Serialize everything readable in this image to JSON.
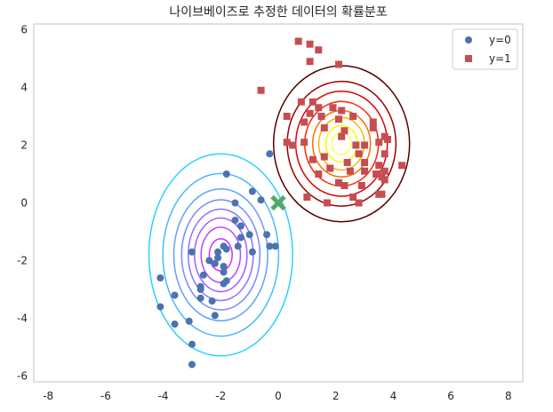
{
  "chart_data": {
    "type": "scatter",
    "title": "나이브베이즈로 추정한 데이터의 확률분포",
    "xlim": [
      -8.5,
      8.5
    ],
    "ylim": [
      -6.2,
      6.2
    ],
    "xticks": [
      -8,
      -6,
      -4,
      -2,
      0,
      2,
      4,
      6,
      8
    ],
    "yticks": [
      6,
      4,
      2,
      0,
      -2,
      -4,
      -6
    ],
    "grid": false,
    "legend_position": "top-right",
    "series": [
      {
        "name": "y=0",
        "marker": "circle",
        "color": "#4c72b0",
        "points": [
          [
            -1.8,
            1.0
          ],
          [
            -0.3,
            1.7
          ],
          [
            -1.5,
            0.0
          ],
          [
            -0.9,
            0.4
          ],
          [
            -0.6,
            0.1
          ],
          [
            -1.5,
            -0.6
          ],
          [
            -1.3,
            -0.8
          ],
          [
            -1.0,
            -1.1
          ],
          [
            -0.4,
            -1.1
          ],
          [
            -0.3,
            -1.5
          ],
          [
            -0.1,
            -1.5
          ],
          [
            -1.3,
            -1.2
          ],
          [
            -1.4,
            -1.5
          ],
          [
            -0.9,
            -1.7
          ],
          [
            -1.9,
            -1.5
          ],
          [
            -1.8,
            -1.6
          ],
          [
            -2.1,
            -1.7
          ],
          [
            -2.1,
            -1.9
          ],
          [
            -2.2,
            -2.1
          ],
          [
            -2.4,
            -2.0
          ],
          [
            -3.0,
            -1.7
          ],
          [
            -1.9,
            -2.2
          ],
          [
            -1.9,
            -2.4
          ],
          [
            -2.6,
            -2.5
          ],
          [
            -2.7,
            -2.9
          ],
          [
            -1.8,
            -2.7
          ],
          [
            -1.9,
            -2.8
          ],
          [
            -2.7,
            -3.0
          ],
          [
            -2.7,
            -3.3
          ],
          [
            -2.3,
            -3.4
          ],
          [
            -2.2,
            -3.9
          ],
          [
            -3.1,
            -4.1
          ],
          [
            -3.6,
            -3.2
          ],
          [
            -4.1,
            -2.6
          ],
          [
            -4.1,
            -3.6
          ],
          [
            -3.6,
            -4.2
          ],
          [
            -3.0,
            -4.9
          ],
          [
            -3.0,
            -5.6
          ]
        ]
      },
      {
        "name": "y=1",
        "marker": "square",
        "color": "#c44e52",
        "points": [
          [
            0.7,
            5.6
          ],
          [
            1.1,
            5.5
          ],
          [
            1.4,
            5.3
          ],
          [
            1.1,
            4.9
          ],
          [
            2.1,
            4.8
          ],
          [
            -0.6,
            3.9
          ],
          [
            0.8,
            3.5
          ],
          [
            1.2,
            3.5
          ],
          [
            1.4,
            3.3
          ],
          [
            1.9,
            3.3
          ],
          [
            0.3,
            3.0
          ],
          [
            1.1,
            3.1
          ],
          [
            1.5,
            3.0
          ],
          [
            2.2,
            3.2
          ],
          [
            2.6,
            3.0
          ],
          [
            3.3,
            2.8
          ],
          [
            0.9,
            2.8
          ],
          [
            1.6,
            2.6
          ],
          [
            2.1,
            2.9
          ],
          [
            2.3,
            2.5
          ],
          [
            2.2,
            2.3
          ],
          [
            3.3,
            2.6
          ],
          [
            0.9,
            2.1
          ],
          [
            3.7,
            2.3
          ],
          [
            3.8,
            2.2
          ],
          [
            0.3,
            2.1
          ],
          [
            0.5,
            2.0
          ],
          [
            2.7,
            2.0
          ],
          [
            3.0,
            2.0
          ],
          [
            3.5,
            2.1
          ],
          [
            1.6,
            1.6
          ],
          [
            2.8,
            1.7
          ],
          [
            3.7,
            1.7
          ],
          [
            1.2,
            1.5
          ],
          [
            2.4,
            1.4
          ],
          [
            3.0,
            1.4
          ],
          [
            3.0,
            1.1
          ],
          [
            3.5,
            1.3
          ],
          [
            4.3,
            1.3
          ],
          [
            1.4,
            1.0
          ],
          [
            1.8,
            1.2
          ],
          [
            2.5,
            1.1
          ],
          [
            3.4,
            1.0
          ],
          [
            3.7,
            1.1
          ],
          [
            3.6,
            0.9
          ],
          [
            3.7,
            0.8
          ],
          [
            2.1,
            0.7
          ],
          [
            2.3,
            0.6
          ],
          [
            2.9,
            0.6
          ],
          [
            1.0,
            0.2
          ],
          [
            1.7,
            0.0
          ],
          [
            2.6,
            0.2
          ],
          [
            2.8,
            0.0
          ],
          [
            3.5,
            0.3
          ],
          [
            3.6,
            0.3
          ]
        ]
      }
    ],
    "query_point": {
      "x": 0.0,
      "y": 0.0,
      "marker": "x",
      "color": "#55a868"
    },
    "contours": [
      {
        "class": "y=0",
        "mean": [
          -2.0,
          -1.8
        ],
        "std": [
          1.0,
          1.4
        ],
        "colormap": "cool",
        "levels": [
          0.005,
          0.015,
          0.03,
          0.045,
          0.06,
          0.075,
          0.09,
          0.105
        ]
      },
      {
        "class": "y=1",
        "mean": [
          2.2,
          2.05
        ],
        "std": [
          1.05,
          1.2
        ],
        "colormap": "hot",
        "levels": [
          0.01,
          0.025,
          0.04,
          0.06,
          0.08,
          0.095,
          0.11,
          0.12
        ]
      }
    ]
  }
}
